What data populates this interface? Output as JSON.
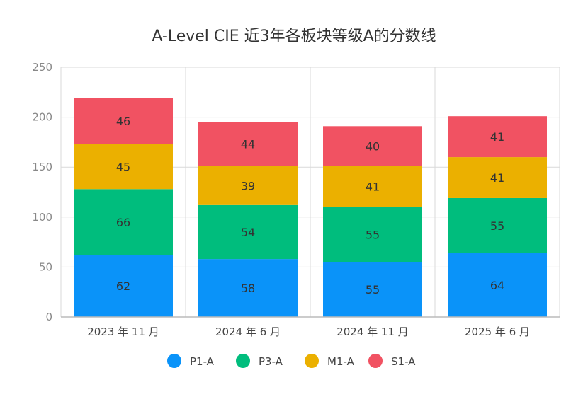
{
  "chart_data": {
    "type": "bar",
    "stacked": true,
    "title": "A-Level CIE 近3年各板块等级A的分数线",
    "categories": [
      "2023 年 11 月",
      "2024 年 6 月",
      "2024 年 11 月",
      "2025 年 6 月"
    ],
    "series": [
      {
        "name": "P1-A",
        "color": "#0a93f9",
        "values": [
          62,
          58,
          55,
          64
        ]
      },
      {
        "name": "P3-A",
        "color": "#00bd7d",
        "values": [
          66,
          54,
          55,
          55
        ]
      },
      {
        "name": "M1-A",
        "color": "#ebb000",
        "values": [
          45,
          39,
          41,
          41
        ]
      },
      {
        "name": "S1-A",
        "color": "#f15262",
        "values": [
          46,
          44,
          40,
          41
        ]
      }
    ],
    "ylim": [
      0,
      250
    ],
    "yticks": [
      0,
      50,
      100,
      150,
      200,
      250
    ],
    "grid": true,
    "legend": "bottom",
    "data_labels": true
  }
}
